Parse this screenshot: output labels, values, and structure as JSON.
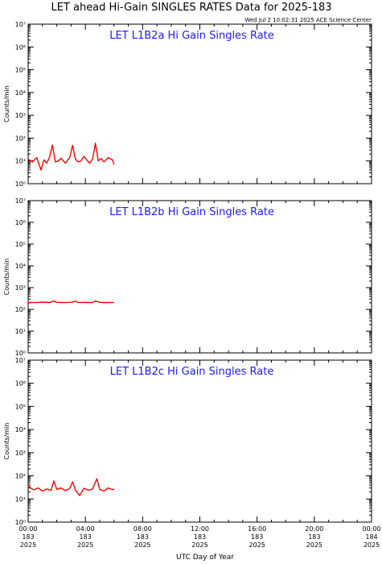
{
  "header": {
    "title": "LET ahead Hi-Gain SINGLES RATES Data for 2025-183",
    "timestamp": "Wed Jul  2 10:02:31 2025 ACE Science Center"
  },
  "colors": {
    "series": "#ff0000",
    "panel_title": "#1a1aff",
    "axes": "#000000"
  },
  "chart_data": [
    {
      "type": "line",
      "title": "LET L1B2a Hi Gain Singles Rate",
      "ylabel": "Counts/min",
      "yscale": "log",
      "ylim": [
        1,
        10000000
      ],
      "y_tick_labels": [
        "10⁰",
        "10¹",
        "10²",
        "10³",
        "10⁴",
        "10⁵",
        "10⁶",
        "10⁷"
      ],
      "x_hours": [
        0.0,
        0.3,
        0.6,
        0.9,
        1.1,
        1.3,
        1.5,
        1.7,
        1.9,
        2.1,
        2.3,
        2.6,
        2.9,
        3.1,
        3.3,
        3.5,
        3.7,
        3.9,
        4.1,
        4.3,
        4.5,
        4.7,
        4.9,
        5.1,
        5.3,
        5.6,
        5.9,
        6.0
      ],
      "values": [
        12,
        9,
        14,
        4,
        11,
        8,
        15,
        50,
        9,
        10,
        13,
        8,
        14,
        48,
        12,
        9,
        10,
        16,
        11,
        8,
        12,
        60,
        10,
        13,
        9,
        14,
        11,
        7
      ],
      "series": [
        {
          "values_desc": ""
        }
      ]
    },
    {
      "type": "line",
      "title": "LET L1B2b Hi Gain Singles Rate",
      "ylabel": "Counts/min",
      "yscale": "log",
      "ylim": [
        1,
        10000000
      ],
      "y_tick_labels": [
        "10⁰",
        "10¹",
        "10²",
        "10³",
        "10⁴",
        "10⁵",
        "10⁶",
        "10⁷"
      ],
      "x_hours": [
        0.0,
        0.5,
        1.0,
        1.5,
        1.8,
        2.0,
        2.5,
        3.0,
        3.3,
        3.5,
        4.0,
        4.5,
        4.7,
        5.0,
        5.5,
        6.0
      ],
      "values": [
        210,
        205,
        215,
        208,
        240,
        210,
        205,
        212,
        235,
        208,
        210,
        206,
        245,
        210,
        207,
        209
      ]
    },
    {
      "type": "line",
      "title": "LET L1B2c Hi Gain Singles Rate",
      "ylabel": "Counts/min",
      "yscale": "log",
      "ylim": [
        1,
        10000000
      ],
      "y_tick_labels": [
        "10⁰",
        "10¹",
        "10²",
        "10³",
        "10⁴",
        "10⁵",
        "10⁶",
        "10⁷"
      ],
      "x_hours": [
        0.0,
        0.2,
        0.4,
        0.7,
        1.0,
        1.3,
        1.6,
        1.8,
        2.0,
        2.3,
        2.6,
        2.9,
        3.1,
        3.3,
        3.6,
        3.9,
        4.2,
        4.5,
        4.8,
        5.0,
        5.3,
        5.6,
        5.9,
        6.0
      ],
      "values": [
        40,
        28,
        25,
        30,
        22,
        27,
        24,
        60,
        26,
        30,
        23,
        28,
        55,
        25,
        14,
        29,
        24,
        27,
        75,
        26,
        22,
        30,
        25,
        28
      ]
    }
  ],
  "x_axis": {
    "label": "UTC Day of Year",
    "ticks": [
      {
        "time": "00:00",
        "day": "183",
        "year": "2025",
        "hour": 0
      },
      {
        "time": "04:00",
        "day": "183",
        "year": "2025",
        "hour": 4
      },
      {
        "time": "08:00",
        "day": "183",
        "year": "2025",
        "hour": 8
      },
      {
        "time": "12:00",
        "day": "183",
        "year": "2025",
        "hour": 12
      },
      {
        "time": "16:00",
        "day": "183",
        "year": "2025",
        "hour": 16
      },
      {
        "time": "20:00",
        "day": "183",
        "year": "2025",
        "hour": 20
      },
      {
        "time": "00:00",
        "day": "184",
        "year": "2025",
        "hour": 24
      }
    ],
    "range_hours": [
      0,
      24
    ]
  }
}
